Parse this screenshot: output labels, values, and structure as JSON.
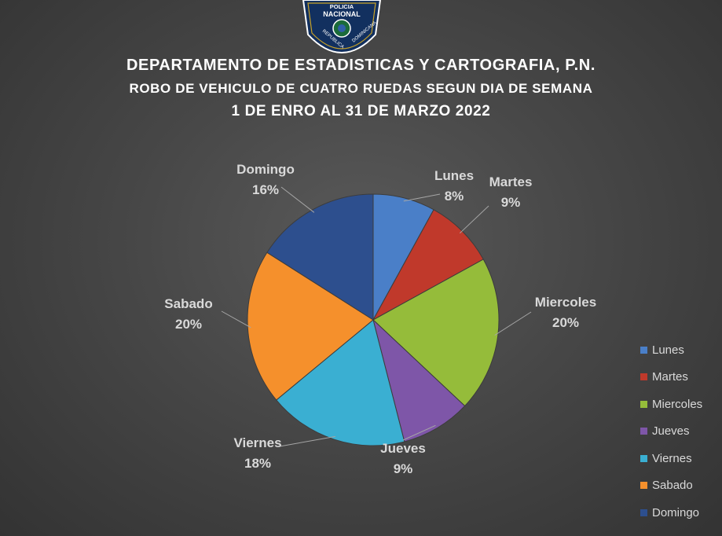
{
  "logo": {
    "line1": "POLICIA",
    "line2": "NACIONAL",
    "line3": "REPUBLICA",
    "line4": "DOMINICANA"
  },
  "title": {
    "line1": "DEPARTAMENTO DE ESTADISTICAS Y CARTOGRAFIA, P.N.",
    "line2": "ROBO DE VEHICULO DE CUATRO RUEDAS SEGUN DIA DE SEMANA",
    "line3": "1 DE ENRO AL 31 DE MARZO 2022"
  },
  "chart_data": {
    "type": "pie",
    "categories": [
      "Lunes",
      "Martes",
      "Miercoles",
      "Jueves",
      "Viernes",
      "Sabado",
      "Domingo"
    ],
    "values": [
      8,
      9,
      20,
      9,
      18,
      20,
      16
    ],
    "labels": [
      "8%",
      "9%",
      "20%",
      "9%",
      "18%",
      "20%",
      "16%"
    ],
    "colors": [
      "#4A7FC8",
      "#C0392B",
      "#95BC3A",
      "#7E56A8",
      "#3AAFD2",
      "#F5902C",
      "#2D4F8E"
    ],
    "legend_position": "right"
  }
}
